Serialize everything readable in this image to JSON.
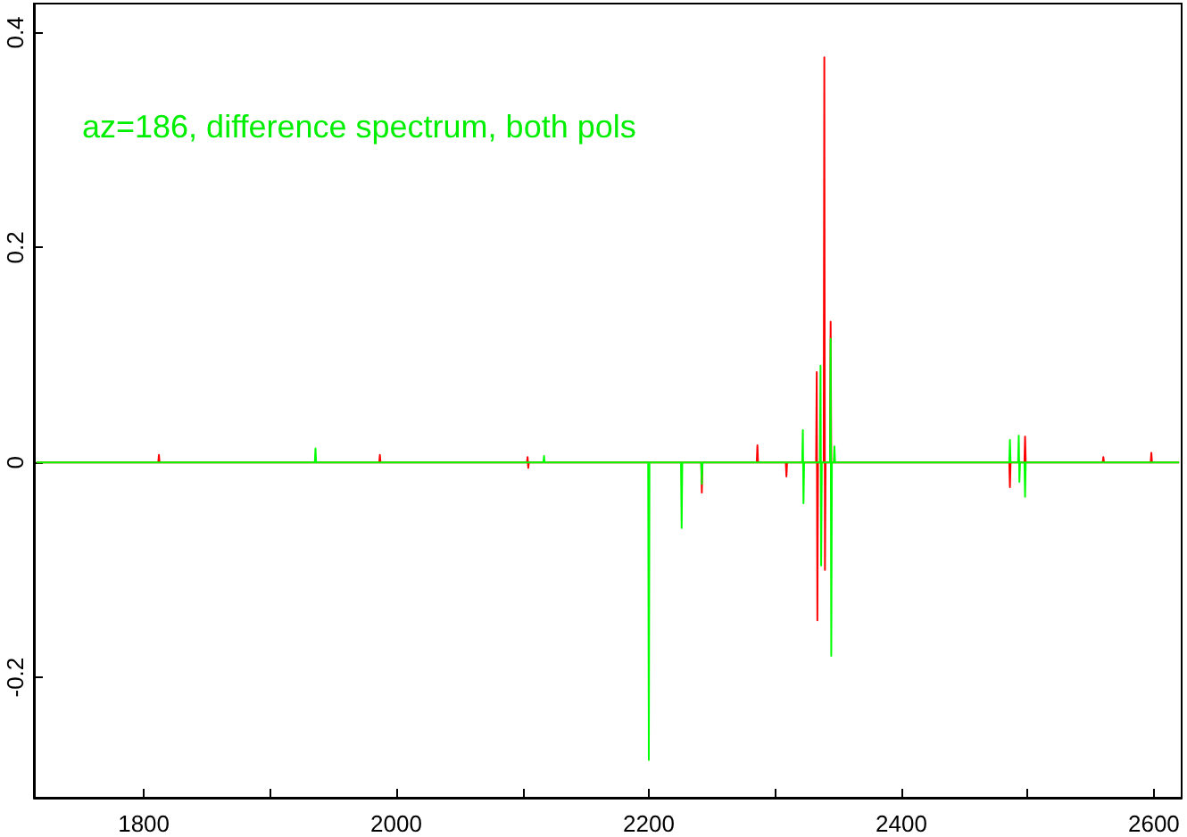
{
  "chart_data": {
    "type": "line",
    "annotations": [
      "az=186, difference spectrum, both pols"
    ],
    "xlim": [
      1713,
      2622
    ],
    "ylim": [
      -0.312,
      0.427
    ],
    "xticks": [
      1800,
      {
        "value": 1900,
        "label": null
      },
      2000,
      {
        "value": 2100,
        "label": null
      },
      2200,
      {
        "value": 2300,
        "label": null
      },
      2400,
      {
        "value": 2500,
        "label": null
      },
      2600
    ],
    "yticks": [
      -0.2,
      0,
      0.2,
      0.4
    ],
    "grid": false,
    "marker": "none",
    "line_style": "solid",
    "series": [
      {
        "color": "#ff0000",
        "x": [
          1715,
          1811.5,
          1812,
          1812.5,
          1986.5,
          1987,
          1987.5,
          2103.5,
          2104,
          2104.5,
          2105,
          2241.5,
          2242,
          2242.5,
          2285.5,
          2286,
          2286.5,
          2308.5,
          2309,
          2309.5,
          2332.5,
          2333,
          2333.5,
          2334,
          2338.5,
          2339,
          2339.5,
          2340,
          2343.5,
          2344,
          2344.5,
          2485.5,
          2486,
          2486.5,
          2497.5,
          2498,
          2498.5,
          2559.5,
          2560,
          2560.5,
          2597.5,
          2598,
          2598.5,
          2620
        ],
        "values": [
          0,
          0,
          0.007,
          0,
          0,
          0.007,
          0,
          0,
          0.005,
          -0.005,
          0,
          0,
          -0.028,
          0,
          0,
          0.016,
          0,
          0,
          -0.013,
          0,
          0,
          0.084,
          -0.147,
          0,
          0,
          0.377,
          -0.1,
          0,
          0,
          0.131,
          0,
          0,
          -0.023,
          0,
          0,
          0.024,
          0,
          0,
          0.005,
          0,
          0,
          0.009,
          0,
          0
        ]
      },
      {
        "color": "#00ff00",
        "x": [
          1715,
          1935.5,
          1936,
          1936.5,
          2116.5,
          2117,
          2117.5,
          2199.5,
          2200,
          2200.5,
          2225.5,
          2226,
          2226.5,
          2241.5,
          2242,
          2242.5,
          2321.5,
          2322,
          2322.5,
          2323,
          2335.5,
          2336,
          2336.5,
          2337,
          2343.5,
          2344,
          2344.5,
          2345,
          2346.5,
          2347,
          2347.5,
          2485.5,
          2486,
          2486.5,
          2492.5,
          2493,
          2493.5,
          2494,
          2497.5,
          2498,
          2498.5,
          2620
        ],
        "values": [
          0,
          0,
          0.013,
          0,
          0,
          0.006,
          0,
          0,
          -0.277,
          0,
          0,
          -0.061,
          0,
          0,
          -0.02,
          0,
          0,
          0.03,
          -0.038,
          0,
          0,
          0.09,
          -0.096,
          0,
          0,
          0.115,
          -0.18,
          0,
          0,
          0.015,
          0,
          0,
          0.021,
          0,
          0,
          0.025,
          -0.018,
          0,
          0,
          -0.032,
          0,
          0
        ]
      }
    ]
  }
}
